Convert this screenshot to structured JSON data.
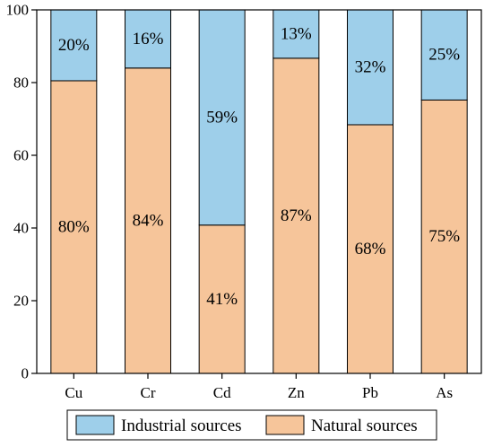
{
  "chart_data": {
    "type": "bar",
    "stacked": true,
    "categories": [
      "Cu",
      "Cr",
      "Cd",
      "Zn",
      "Pb",
      "As"
    ],
    "series": [
      {
        "name": "Natural sources",
        "values": [
          80.5,
          84.0,
          40.8,
          86.7,
          68.4,
          75.2
        ],
        "labels": [
          "80%",
          "84%",
          "41%",
          "87%",
          "68%",
          "75%"
        ],
        "color": "#F6C59A"
      },
      {
        "name": "Industrial sources",
        "values": [
          19.5,
          16.0,
          59.2,
          13.3,
          31.6,
          24.8
        ],
        "labels": [
          "20%",
          "16%",
          "59%",
          "13%",
          "32%",
          "25%"
        ],
        "color": "#9ECFEA"
      }
    ],
    "ylim": [
      0,
      100
    ],
    "yticks": [
      "0",
      "20",
      "40",
      "60",
      "80",
      "100"
    ],
    "xlabel": "",
    "ylabel": "",
    "legend_position": "bottom",
    "legend_order": [
      "Industrial sources",
      "Natural sources"
    ]
  }
}
